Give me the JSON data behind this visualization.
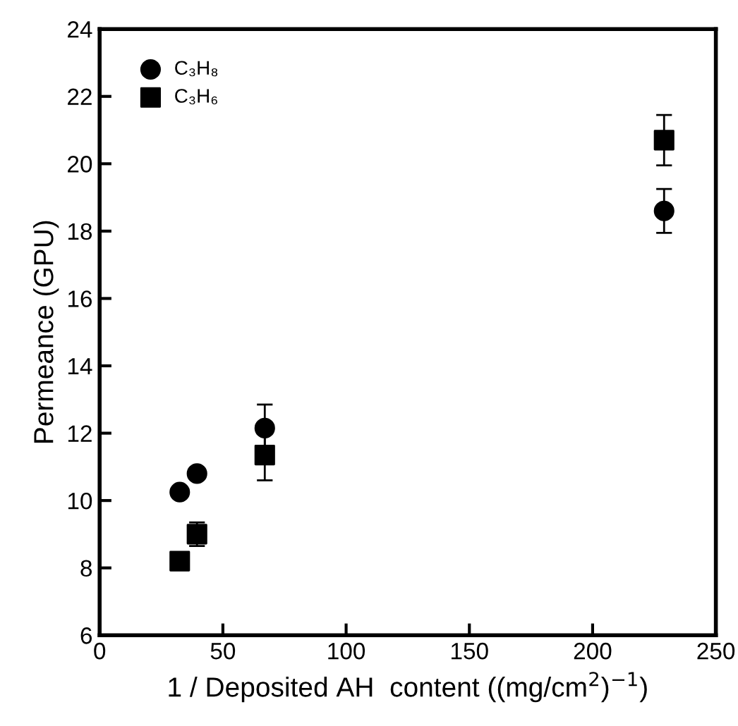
{
  "chart_data": {
    "type": "scatter",
    "xlabel": "1 / Deposited AH  content ((mg/cm$^{2}$)$^{−1}$)",
    "ylabel": "Permeance (GPU)",
    "series": [
      {
        "name": "C₃H₈",
        "color": "#000000",
        "marker": "circle",
        "x": [
          32.5,
          39.5,
          67,
          229
        ],
        "values": [
          10.25,
          10.8,
          12.15,
          18.6
        ],
        "errors": [
          null,
          null,
          0.7,
          0.65
        ]
      },
      {
        "name": "C₃H₆",
        "color": "#000000",
        "marker": "square",
        "x": [
          32.5,
          39.5,
          67,
          229
        ],
        "values": [
          8.2,
          9.0,
          11.35,
          20.7
        ],
        "errors": [
          null,
          0.35,
          0.75,
          0.75
        ]
      }
    ],
    "xlim": [
      0,
      250
    ],
    "xticks": [
      0,
      50,
      100,
      150,
      200,
      250
    ],
    "ylim": [
      6,
      24
    ],
    "yticks": [
      6,
      8,
      10,
      12,
      14,
      16,
      18,
      20,
      22,
      24
    ],
    "grid": false,
    "legend": "top left"
  }
}
